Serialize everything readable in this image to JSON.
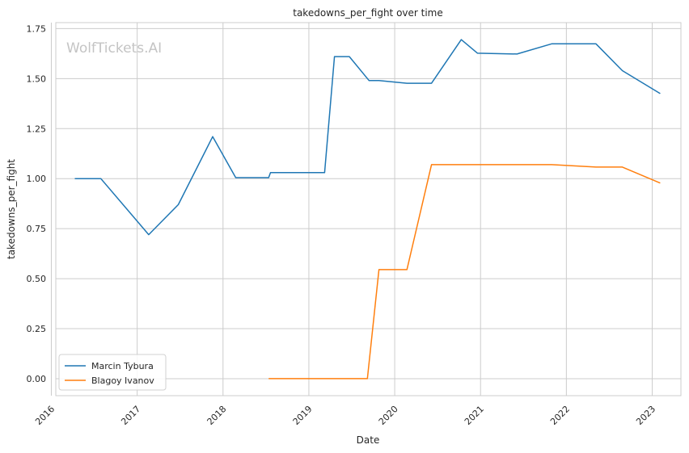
{
  "chart_data": {
    "type": "line",
    "title": "takedowns_per_fight over time",
    "xlabel": "Date",
    "ylabel": "takedowns_per_fight",
    "watermark": "WolfTickets.AI",
    "x_axis": {
      "type": "date",
      "ticks": [
        "2016",
        "2017",
        "2018",
        "2019",
        "2020",
        "2021",
        "2022",
        "2023"
      ]
    },
    "y_axis": {
      "ticks": [
        "0.00",
        "0.25",
        "0.50",
        "0.75",
        "1.00",
        "1.25",
        "1.50",
        "1.75"
      ],
      "ylim": [
        -0.085,
        1.78
      ]
    },
    "xlim": [
      "2016-01-20",
      "2023-05-03"
    ],
    "grid": true,
    "legend_position": "lower-left",
    "series": [
      {
        "name": "Marcin Tybura",
        "color": "#1f77b4",
        "points": [
          [
            "2016-04-10",
            1.0
          ],
          [
            "2016-07-30",
            1.0
          ],
          [
            "2017-02-19",
            0.72
          ],
          [
            "2017-06-25",
            0.87
          ],
          [
            "2017-11-18",
            1.21
          ],
          [
            "2018-02-24",
            1.005
          ],
          [
            "2018-07-14",
            1.005
          ],
          [
            "2018-07-22",
            1.03
          ],
          [
            "2019-03-09",
            1.03
          ],
          [
            "2019-04-20",
            1.61
          ],
          [
            "2019-06-22",
            1.61
          ],
          [
            "2019-09-14",
            1.49
          ],
          [
            "2019-10-26",
            1.49
          ],
          [
            "2020-02-22",
            1.477
          ],
          [
            "2020-06-06",
            1.477
          ],
          [
            "2020-10-11",
            1.695
          ],
          [
            "2020-12-19",
            1.627
          ],
          [
            "2021-06-05",
            1.623
          ],
          [
            "2021-10-30",
            1.674
          ],
          [
            "2022-05-07",
            1.674
          ],
          [
            "2022-08-27",
            1.54
          ],
          [
            "2023-02-04",
            1.425
          ]
        ]
      },
      {
        "name": "Blagoy Ivanov",
        "color": "#ff7f0e",
        "points": [
          [
            "2018-07-14",
            0.0
          ],
          [
            "2019-09-07",
            0.0
          ],
          [
            "2019-10-26",
            0.545
          ],
          [
            "2020-02-22",
            0.545
          ],
          [
            "2020-06-06",
            1.07
          ],
          [
            "2021-10-30",
            1.07
          ],
          [
            "2022-05-07",
            1.058
          ],
          [
            "2022-08-27",
            1.058
          ],
          [
            "2023-02-04",
            0.978
          ]
        ]
      }
    ]
  }
}
